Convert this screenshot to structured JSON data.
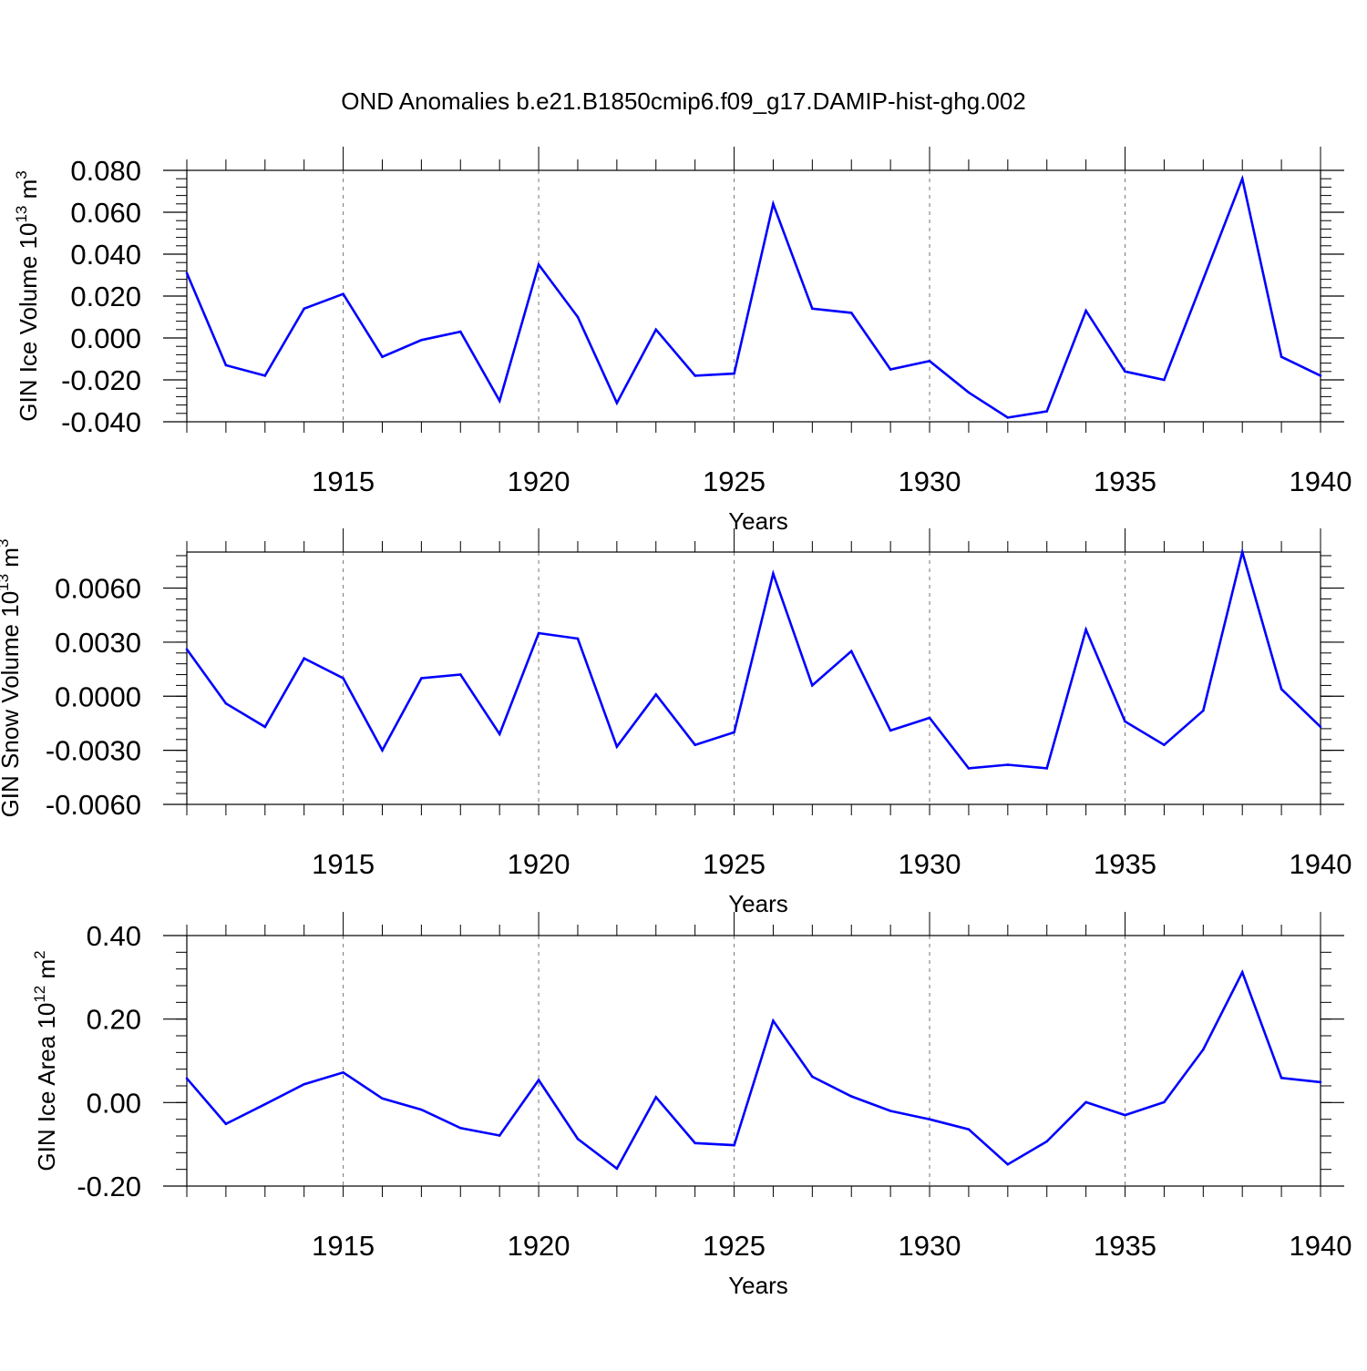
{
  "title": "OND Anomalies b.e21.B1850cmip6.f09_g17.DAMIP-hist-ghg.002",
  "chart_data": [
    {
      "type": "line",
      "title": "OND Anomalies b.e21.B1850cmip6.f09_g17.DAMIP-hist-ghg.002",
      "xlabel": "Years",
      "ylabel": "GIN Ice Volume 10",
      "ylabel_exp": "13",
      "ylabel_unit": "m",
      "ylabel_unit_exp": "3",
      "xlim": [
        1911,
        1940
      ],
      "ylim": [
        -0.04,
        0.08
      ],
      "x_ticks": [
        1915,
        1920,
        1925,
        1930,
        1935,
        1940
      ],
      "x_tick_labels": [
        "1915",
        "1920",
        "1925",
        "1930",
        "1935",
        "1940"
      ],
      "y_ticks": [
        -0.04,
        -0.02,
        0.0,
        0.02,
        0.04,
        0.06,
        0.08
      ],
      "y_tick_labels": [
        "-0.040",
        "-0.020",
        "0.000",
        "0.020",
        "0.040",
        "0.060",
        "0.080"
      ],
      "x": [
        1911,
        1912,
        1913,
        1914,
        1915,
        1916,
        1917,
        1918,
        1919,
        1920,
        1921,
        1922,
        1923,
        1924,
        1925,
        1926,
        1927,
        1928,
        1929,
        1930,
        1931,
        1932,
        1933,
        1934,
        1935,
        1936,
        1937,
        1938,
        1939,
        1940
      ],
      "values": [
        0.031,
        -0.013,
        -0.018,
        0.014,
        0.021,
        -0.009,
        -0.001,
        0.003,
        -0.03,
        0.035,
        0.01,
        -0.031,
        0.004,
        -0.018,
        -0.017,
        0.064,
        0.014,
        0.012,
        -0.015,
        -0.011,
        -0.026,
        -0.038,
        -0.035,
        0.013,
        -0.016,
        -0.02,
        0.028,
        0.076,
        -0.009,
        -0.018
      ],
      "line_color": "#0000ff",
      "grid": "vertical dashed at major x ticks"
    },
    {
      "type": "line",
      "xlabel": "Years",
      "ylabel": "GIN Snow Volume 10",
      "ylabel_exp": "13",
      "ylabel_unit": "m",
      "ylabel_unit_exp": "3",
      "xlim": [
        1911,
        1940
      ],
      "ylim": [
        -0.006,
        0.008
      ],
      "x_ticks": [
        1915,
        1920,
        1925,
        1930,
        1935,
        1940
      ],
      "x_tick_labels": [
        "1915",
        "1920",
        "1925",
        "1930",
        "1935",
        "1940"
      ],
      "y_ticks": [
        -0.006,
        -0.003,
        0.0,
        0.003,
        0.006
      ],
      "y_tick_labels": [
        "-0.0060",
        "-0.0030",
        "0.0000",
        "0.0030",
        "0.0060"
      ],
      "x": [
        1911,
        1912,
        1913,
        1914,
        1915,
        1916,
        1917,
        1918,
        1919,
        1920,
        1921,
        1922,
        1923,
        1924,
        1925,
        1926,
        1927,
        1928,
        1929,
        1930,
        1931,
        1932,
        1933,
        1934,
        1935,
        1936,
        1937,
        1938,
        1939,
        1940
      ],
      "values": [
        0.0026,
        -0.0004,
        -0.0017,
        0.0021,
        0.001,
        -0.003,
        0.001,
        0.0012,
        -0.0021,
        0.0035,
        0.0032,
        -0.0028,
        0.0001,
        -0.0027,
        -0.002,
        0.0068,
        0.0006,
        0.0025,
        -0.0019,
        -0.0012,
        -0.004,
        -0.0038,
        -0.004,
        0.0037,
        -0.0014,
        -0.0027,
        -0.0008,
        0.008,
        0.0004,
        -0.0017
      ],
      "line_color": "#0000ff",
      "grid": "vertical dashed at major x ticks"
    },
    {
      "type": "line",
      "xlabel": "Years",
      "ylabel": "GIN Ice Area 10",
      "ylabel_exp": "12",
      "ylabel_unit": "m",
      "ylabel_unit_exp": "2",
      "xlim": [
        1911,
        1940
      ],
      "ylim": [
        -0.2,
        0.4
      ],
      "x_ticks": [
        1915,
        1920,
        1925,
        1930,
        1935,
        1940
      ],
      "x_tick_labels": [
        "1915",
        "1920",
        "1925",
        "1930",
        "1935",
        "1940"
      ],
      "y_ticks": [
        -0.2,
        0.0,
        0.2,
        0.4
      ],
      "y_tick_labels": [
        "-0.20",
        "0.00",
        "0.20",
        "0.40"
      ],
      "x": [
        1911,
        1912,
        1913,
        1914,
        1915,
        1916,
        1917,
        1918,
        1919,
        1920,
        1921,
        1922,
        1923,
        1924,
        1925,
        1926,
        1927,
        1928,
        1929,
        1930,
        1931,
        1932,
        1933,
        1934,
        1935,
        1936,
        1937,
        1938,
        1939,
        1940
      ],
      "values": [
        0.058,
        -0.051,
        -0.004,
        0.044,
        0.072,
        0.01,
        -0.017,
        -0.061,
        -0.079,
        0.054,
        -0.087,
        -0.158,
        0.013,
        -0.097,
        -0.102,
        0.196,
        0.062,
        0.015,
        -0.02,
        -0.04,
        -0.064,
        -0.148,
        -0.093,
        0.001,
        -0.03,
        0.001,
        0.127,
        0.312,
        0.059,
        0.049
      ],
      "line_color": "#0000ff",
      "grid": "vertical dashed at major x ticks"
    }
  ]
}
